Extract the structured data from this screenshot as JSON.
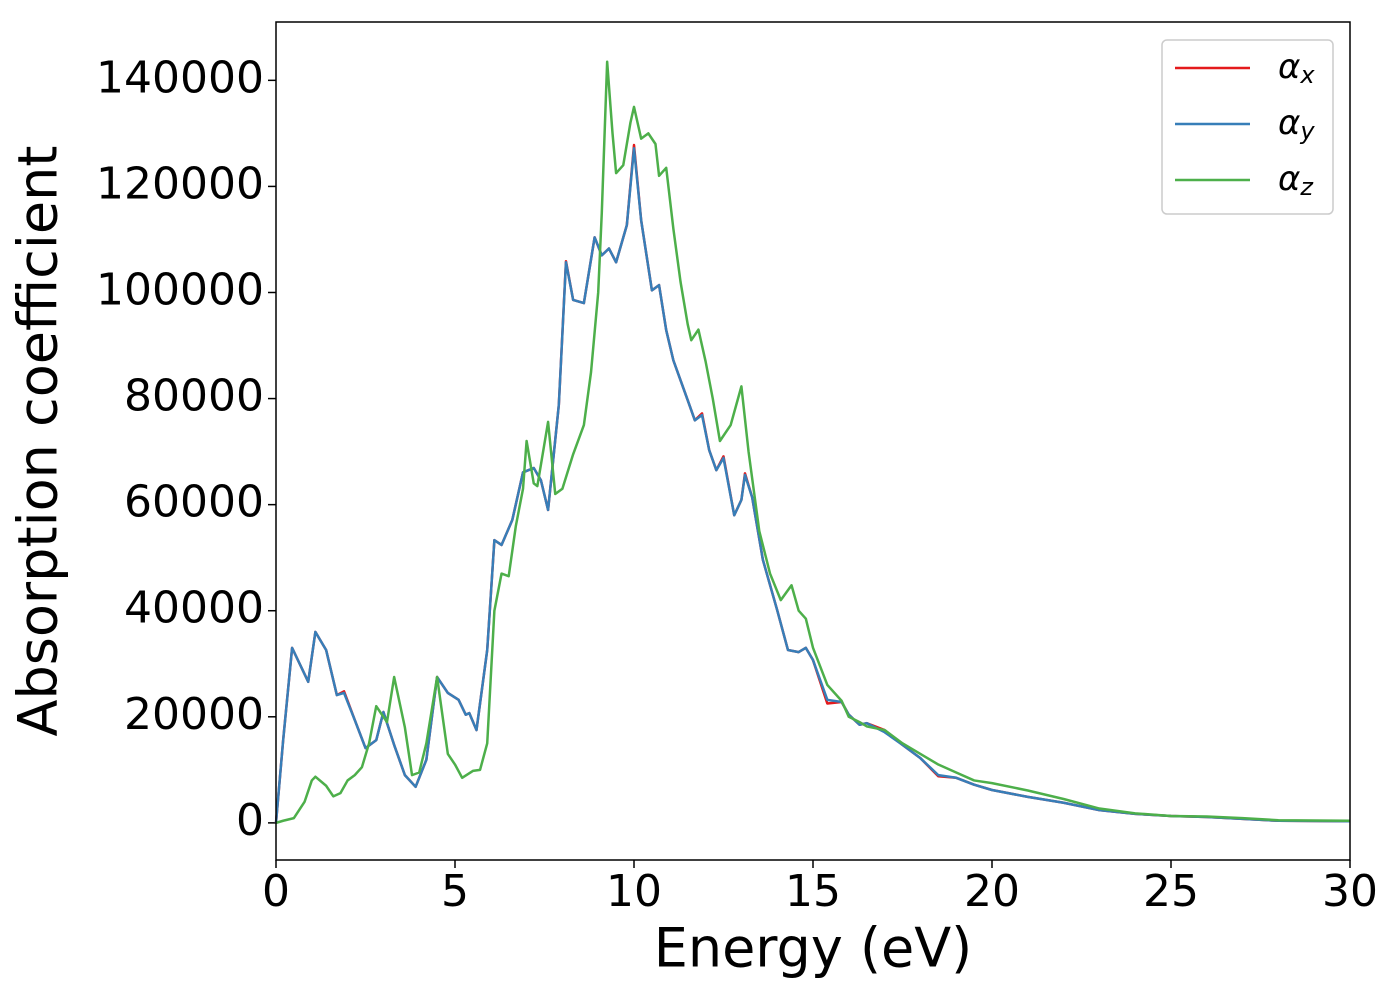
{
  "chart_data": {
    "type": "line",
    "xlabel": "Energy (eV)",
    "ylabel": "Absorption coefficient",
    "xlim": [
      0,
      30
    ],
    "ylim": [
      -7000,
      151000
    ],
    "xticks": [
      0,
      5,
      10,
      15,
      20,
      25,
      30
    ],
    "yticks": [
      0,
      20000,
      40000,
      60000,
      80000,
      100000,
      120000,
      140000
    ],
    "grid": false,
    "legend": "upper right",
    "series": [
      {
        "name": "αx",
        "color": "#e41a1c",
        "x": [
          0,
          0.2,
          0.45,
          0.9,
          1.1,
          1.4,
          1.7,
          1.9,
          2.2,
          2.5,
          2.8,
          3.0,
          3.3,
          3.6,
          3.9,
          4.2,
          4.5,
          4.8,
          5.1,
          5.3,
          5.4,
          5.6,
          5.9,
          6.1,
          6.3,
          6.6,
          6.9,
          7.2,
          7.4,
          7.6,
          7.9,
          8.1,
          8.3,
          8.6,
          8.9,
          9.1,
          9.3,
          9.5,
          9.8,
          10.0,
          10.2,
          10.5,
          10.7,
          10.9,
          11.1,
          11.5,
          11.7,
          11.9,
          12.1,
          12.3,
          12.5,
          12.8,
          13.0,
          13.1,
          13.3,
          13.6,
          14.0,
          14.3,
          14.6,
          14.8,
          15.0,
          15.4,
          15.8,
          16.0,
          16.3,
          16.5,
          17.0,
          17.5,
          18.0,
          18.5,
          19.0,
          19.5,
          20,
          21,
          22,
          23,
          24,
          25,
          26,
          27,
          28,
          30
        ],
        "values": [
          0,
          15600,
          33000,
          26600,
          36000,
          32600,
          24100,
          24800,
          19400,
          14100,
          15600,
          20900,
          14700,
          9000,
          6800,
          11900,
          27500,
          24500,
          23200,
          20400,
          20700,
          17500,
          32600,
          53300,
          52400,
          57100,
          66100,
          66900,
          64600,
          59000,
          78800,
          105900,
          98600,
          98000,
          110400,
          107000,
          108300,
          105700,
          112700,
          127800,
          113600,
          100400,
          101400,
          92900,
          87200,
          79700,
          75900,
          77200,
          70300,
          66500,
          69100,
          58000,
          60900,
          65900,
          61400,
          49600,
          40100,
          32600,
          32200,
          33000,
          30700,
          22500,
          22800,
          20400,
          18500,
          18800,
          17500,
          14700,
          12200,
          8800,
          8500,
          7200,
          6200,
          4900,
          3800,
          2400,
          1700,
          1300,
          1100,
          750,
          400,
          300
        ]
      },
      {
        "name": "αy",
        "color": "#377eb8",
        "x": [
          0,
          0.2,
          0.45,
          0.9,
          1.1,
          1.4,
          1.7,
          1.9,
          2.2,
          2.5,
          2.8,
          3.0,
          3.3,
          3.6,
          3.9,
          4.2,
          4.5,
          4.8,
          5.1,
          5.3,
          5.4,
          5.6,
          5.9,
          6.1,
          6.3,
          6.6,
          6.9,
          7.2,
          7.4,
          7.6,
          7.9,
          8.1,
          8.3,
          8.6,
          8.9,
          9.1,
          9.3,
          9.5,
          9.8,
          10.0,
          10.2,
          10.5,
          10.7,
          10.9,
          11.1,
          11.5,
          11.7,
          11.9,
          12.1,
          12.3,
          12.5,
          12.8,
          13.0,
          13.1,
          13.3,
          13.6,
          14.0,
          14.3,
          14.6,
          14.8,
          15.0,
          15.4,
          15.8,
          16.0,
          16.3,
          16.5,
          17.0,
          17.5,
          18.0,
          18.5,
          19.0,
          19.5,
          20,
          21,
          22,
          23,
          24,
          25,
          26,
          27,
          28,
          30
        ],
        "values": [
          0,
          15600,
          33000,
          26600,
          36000,
          32600,
          24100,
          24500,
          19400,
          14100,
          15600,
          20900,
          14700,
          9000,
          6800,
          11900,
          27500,
          24500,
          23200,
          20400,
          20700,
          17500,
          32600,
          53300,
          52400,
          57100,
          66100,
          66900,
          64600,
          59000,
          78800,
          105700,
          98600,
          98000,
          110400,
          107000,
          108300,
          105700,
          112700,
          127200,
          113600,
          100400,
          101400,
          92900,
          87200,
          79700,
          75900,
          76900,
          70300,
          66500,
          68800,
          58000,
          60900,
          65600,
          61400,
          49600,
          40100,
          32600,
          32200,
          33000,
          30700,
          23200,
          22800,
          20400,
          18500,
          18800,
          17100,
          14700,
          12200,
          9000,
          8500,
          7200,
          6200,
          4900,
          3800,
          2400,
          1700,
          1300,
          1100,
          750,
          400,
          300
        ]
      },
      {
        "name": "αz",
        "color": "#4daf4a",
        "x": [
          0,
          0.2,
          0.5,
          0.8,
          1.0,
          1.1,
          1.4,
          1.6,
          1.8,
          2.0,
          2.2,
          2.4,
          2.6,
          2.8,
          2.9,
          3.1,
          3.3,
          3.6,
          3.8,
          4.0,
          4.2,
          4.5,
          4.8,
          5.0,
          5.2,
          5.5,
          5.7,
          5.9,
          6.1,
          6.3,
          6.5,
          6.7,
          6.9,
          7.0,
          7.2,
          7.3,
          7.6,
          7.8,
          8.0,
          8.3,
          8.6,
          8.8,
          9.0,
          9.1,
          9.25,
          9.4,
          9.5,
          9.7,
          9.9,
          10.0,
          10.2,
          10.4,
          10.6,
          10.7,
          10.9,
          11.1,
          11.3,
          11.5,
          11.6,
          11.8,
          12.0,
          12.2,
          12.4,
          12.7,
          13.0,
          13.2,
          13.5,
          13.8,
          14.1,
          14.4,
          14.6,
          14.8,
          15.0,
          15.4,
          15.8,
          16.0,
          16.3,
          16.5,
          17,
          17.5,
          18,
          18.5,
          19,
          19.5,
          20,
          21,
          22,
          23,
          24,
          25,
          26,
          27,
          28,
          30
        ],
        "values": [
          0,
          400,
          900,
          4000,
          8000,
          8700,
          7000,
          5000,
          5600,
          8000,
          9000,
          10500,
          15000,
          22000,
          21000,
          19000,
          27500,
          18000,
          9000,
          9500,
          15000,
          27500,
          13000,
          11000,
          8500,
          9800,
          10000,
          15000,
          40000,
          47000,
          46500,
          56000,
          63000,
          72000,
          64000,
          63500,
          75600,
          62000,
          63000,
          69500,
          75000,
          85000,
          100000,
          115000,
          143500,
          130000,
          122500,
          124000,
          132000,
          135000,
          129000,
          130000,
          128000,
          122000,
          123500,
          112000,
          102000,
          94000,
          91000,
          93000,
          87000,
          80000,
          72000,
          75000,
          82300,
          70000,
          55000,
          47000,
          42000,
          44800,
          40000,
          38500,
          33000,
          26000,
          23000,
          20000,
          19000,
          18200,
          17500,
          15000,
          13000,
          11000,
          9500,
          8000,
          7500,
          6100,
          4500,
          2700,
          1800,
          1300,
          1200,
          900,
          500,
          400
        ]
      }
    ]
  }
}
